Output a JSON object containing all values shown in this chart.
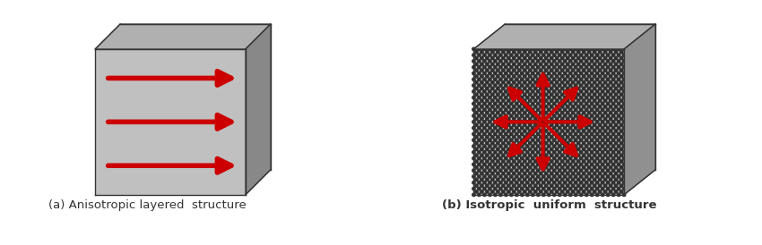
{
  "background_color": "#ffffff",
  "fig_width": 8.5,
  "fig_height": 2.74,
  "label_a": "(a) Anisotropic layered  structure",
  "label_b": "(b) Isotropic  uniform  structure",
  "label_fontsize": 9.5,
  "arrow_color": "#cc0000",
  "front_face_light": "#c0c0c0",
  "front_face_dark_diamond": "#303030",
  "side_face_color": "#888888",
  "top_face_color": "#b0b0b0",
  "dot_color": "#303030",
  "dot_bg": "#c8c8c8"
}
